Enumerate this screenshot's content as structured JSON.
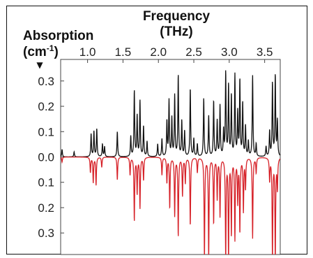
{
  "chart_data": {
    "type": "line",
    "title": "",
    "xlabel_line1": "Frequency",
    "xlabel_line2": "(THz)",
    "ylabel_line1": "Absorption",
    "ylabel_line2_pre": "(cm",
    "ylabel_line2_sup": "-1",
    "ylabel_line2_post": ")",
    "ylabel_arrow": "▼",
    "x_axis_position": "top",
    "xlim": [
      0.62,
      3.72
    ],
    "ylim": [
      -0.385,
      0.385
    ],
    "x_ticks": [
      {
        "value": 1.0,
        "label": "1.0"
      },
      {
        "value": 1.5,
        "label": "1.5"
      },
      {
        "value": 2.0,
        "label": "2.0"
      },
      {
        "value": 2.5,
        "label": "2.5"
      },
      {
        "value": 3.0,
        "label": "3.0"
      },
      {
        "value": 3.5,
        "label": "3.5"
      }
    ],
    "y_ticks": [
      {
        "value": 0.3,
        "label": "0.3"
      },
      {
        "value": 0.2,
        "label": "0.2"
      },
      {
        "value": 0.1,
        "label": "0.1"
      },
      {
        "value": 0.0,
        "label": "0.0"
      },
      {
        "value": -0.1,
        "label": "0.1"
      },
      {
        "value": -0.2,
        "label": "0.2"
      },
      {
        "value": -0.3,
        "label": "0.3"
      }
    ],
    "grid": false,
    "linewidth_gamma": 0.006,
    "series": [
      {
        "color": "#111111",
        "direction": "up",
        "peaks": [
          [
            0.64,
            0.03
          ],
          [
            0.81,
            0.02
          ],
          [
            1.05,
            0.09
          ],
          [
            1.09,
            0.1
          ],
          [
            1.13,
            0.11
          ],
          [
            1.21,
            0.05
          ],
          [
            1.24,
            0.04
          ],
          [
            1.42,
            0.1
          ],
          [
            1.61,
            0.08
          ],
          [
            1.66,
            0.26
          ],
          [
            1.7,
            0.16
          ],
          [
            1.74,
            0.22
          ],
          [
            1.79,
            0.12
          ],
          [
            1.84,
            0.06
          ],
          [
            1.99,
            0.05
          ],
          [
            2.05,
            0.07
          ],
          [
            2.12,
            0.14
          ],
          [
            2.15,
            0.22
          ],
          [
            2.19,
            0.15
          ],
          [
            2.23,
            0.24
          ],
          [
            2.28,
            0.32
          ],
          [
            2.33,
            0.14
          ],
          [
            2.37,
            0.1
          ],
          [
            2.45,
            0.27
          ],
          [
            2.5,
            0.07
          ],
          [
            2.55,
            0.05
          ],
          [
            2.64,
            0.23
          ],
          [
            2.71,
            0.16
          ],
          [
            2.78,
            0.22
          ],
          [
            2.83,
            0.14
          ],
          [
            2.87,
            0.2
          ],
          [
            2.92,
            0.1
          ],
          [
            2.95,
            0.33
          ],
          [
            2.99,
            0.28
          ],
          [
            3.03,
            0.24
          ],
          [
            3.08,
            0.32
          ],
          [
            3.12,
            0.17
          ],
          [
            3.15,
            0.3
          ],
          [
            3.19,
            0.21
          ],
          [
            3.23,
            0.12
          ],
          [
            3.27,
            0.06
          ],
          [
            3.33,
            0.32
          ],
          [
            3.38,
            0.05
          ],
          [
            3.52,
            0.04
          ],
          [
            3.57,
            0.1
          ],
          [
            3.61,
            0.29
          ],
          [
            3.65,
            0.32
          ],
          [
            3.68,
            0.14
          ]
        ]
      },
      {
        "color": "#d62027",
        "direction": "down",
        "peaks": [
          [
            0.64,
            0.02
          ],
          [
            1.04,
            0.06
          ],
          [
            1.08,
            0.1
          ],
          [
            1.12,
            0.11
          ],
          [
            1.2,
            0.04
          ],
          [
            1.42,
            0.09
          ],
          [
            1.6,
            0.07
          ],
          [
            1.66,
            0.25
          ],
          [
            1.7,
            0.14
          ],
          [
            1.74,
            0.2
          ],
          [
            1.79,
            0.09
          ],
          [
            2.05,
            0.07
          ],
          [
            2.12,
            0.1
          ],
          [
            2.16,
            0.2
          ],
          [
            2.23,
            0.23
          ],
          [
            2.28,
            0.31
          ],
          [
            2.34,
            0.15
          ],
          [
            2.38,
            0.1
          ],
          [
            2.45,
            0.27
          ],
          [
            2.55,
            0.06
          ],
          [
            2.65,
            0.4
          ],
          [
            2.71,
            0.4
          ],
          [
            2.78,
            0.26
          ],
          [
            2.83,
            0.16
          ],
          [
            2.87,
            0.23
          ],
          [
            2.95,
            0.4
          ],
          [
            2.99,
            0.4
          ],
          [
            3.03,
            0.3
          ],
          [
            3.08,
            0.32
          ],
          [
            3.12,
            0.17
          ],
          [
            3.15,
            0.29
          ],
          [
            3.2,
            0.21
          ],
          [
            3.23,
            0.12
          ],
          [
            3.33,
            0.32
          ],
          [
            3.38,
            0.06
          ],
          [
            3.57,
            0.09
          ],
          [
            3.61,
            0.4
          ],
          [
            3.65,
            0.4
          ],
          [
            3.68,
            0.12
          ]
        ]
      }
    ]
  }
}
